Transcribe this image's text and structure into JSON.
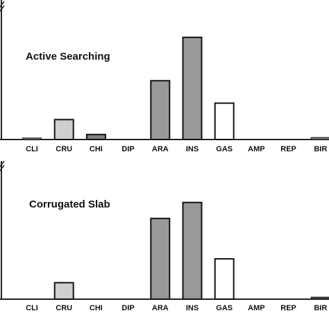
{
  "chart_data": [
    {
      "type": "bar",
      "title": "Active Searching",
      "categories": [
        "CLI",
        "CRU",
        "CHI",
        "DIP",
        "ARA",
        "INS",
        "GAS",
        "AMP",
        "REP",
        "BIR"
      ],
      "values": [
        0.3,
        4.0,
        1.0,
        0,
        11.8,
        20.5,
        7.3,
        0,
        0,
        0.4
      ],
      "ylim": [
        0,
        28
      ],
      "series_color": [
        "#808080",
        "#cfcfcf",
        "#808080",
        "#808080",
        "#999999",
        "#999999",
        "#ffffff",
        "#808080",
        "#808080",
        "#808080"
      ],
      "grid": false
    },
    {
      "type": "bar",
      "title": "Corrugated Slab",
      "categories": [
        "CLI",
        "CRU",
        "CHI",
        "DIP",
        "ARA",
        "INS",
        "GAS",
        "AMP",
        "REP",
        "BIR"
      ],
      "values": [
        0,
        3.3,
        0,
        0,
        16.2,
        19.4,
        8.1,
        0,
        0,
        0.4
      ],
      "ylim": [
        0,
        28
      ],
      "series_color": [
        "#808080",
        "#cfcfcf",
        "#808080",
        "#808080",
        "#999999",
        "#999999",
        "#ffffff",
        "#808080",
        "#808080",
        "#444444"
      ],
      "grid": false
    }
  ]
}
